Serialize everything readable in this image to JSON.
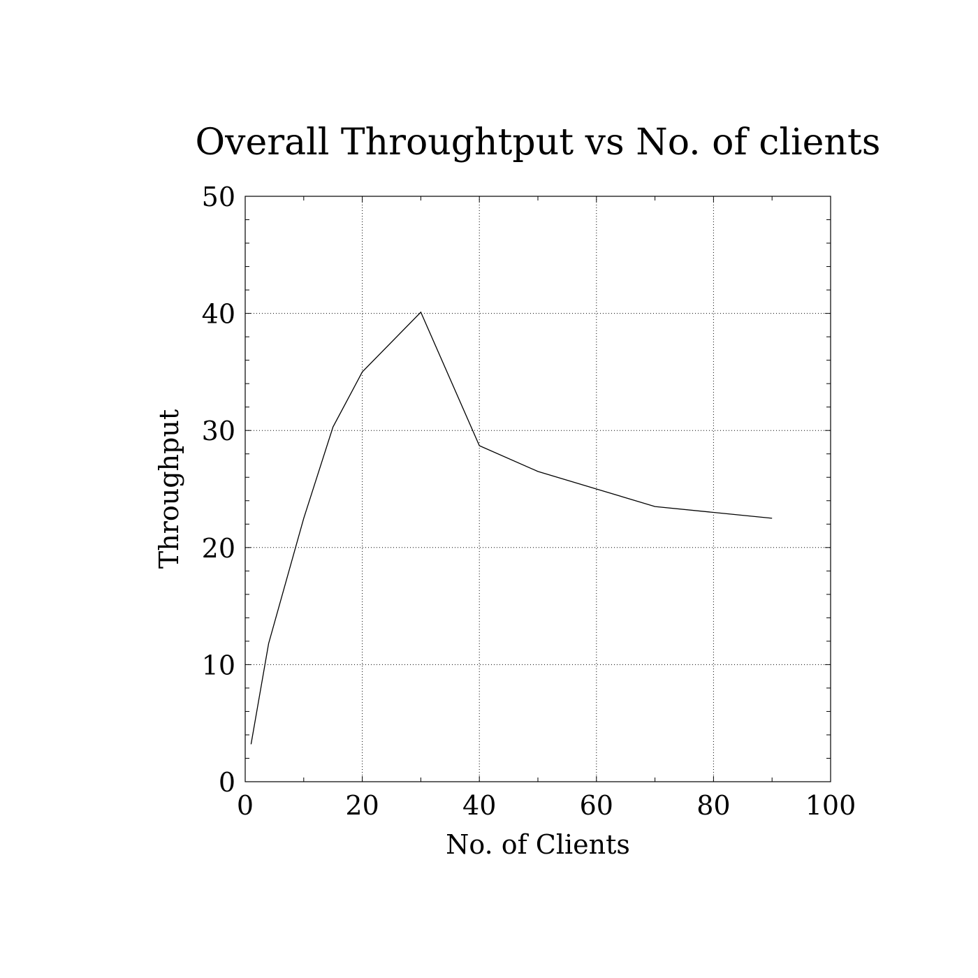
{
  "chart_data": {
    "type": "line",
    "title": "Overall Throughtput vs No. of clients",
    "xlabel": "No. of Clients",
    "ylabel": "Throughput",
    "xlim": [
      0,
      100
    ],
    "ylim": [
      0,
      50
    ],
    "grid": true,
    "x_ticks": [
      0,
      20,
      40,
      60,
      80,
      100
    ],
    "y_ticks": [
      0,
      10,
      20,
      30,
      40,
      50
    ],
    "x_tick_labels": [
      "0",
      "20",
      "40",
      "60",
      "80",
      "100"
    ],
    "y_tick_labels": [
      "0",
      "10",
      "20",
      "30",
      "40",
      "50"
    ],
    "series": [
      {
        "x": [
          1,
          4,
          10,
          15,
          20,
          30,
          40,
          50,
          60,
          70,
          80,
          90
        ],
        "y": [
          3.2,
          11.8,
          22.5,
          30.3,
          35.0,
          40.1,
          28.7,
          26.5,
          25.0,
          23.5,
          23.0,
          22.5
        ]
      }
    ],
    "colors": {
      "line": "#000000",
      "background": "#ffffff"
    }
  }
}
